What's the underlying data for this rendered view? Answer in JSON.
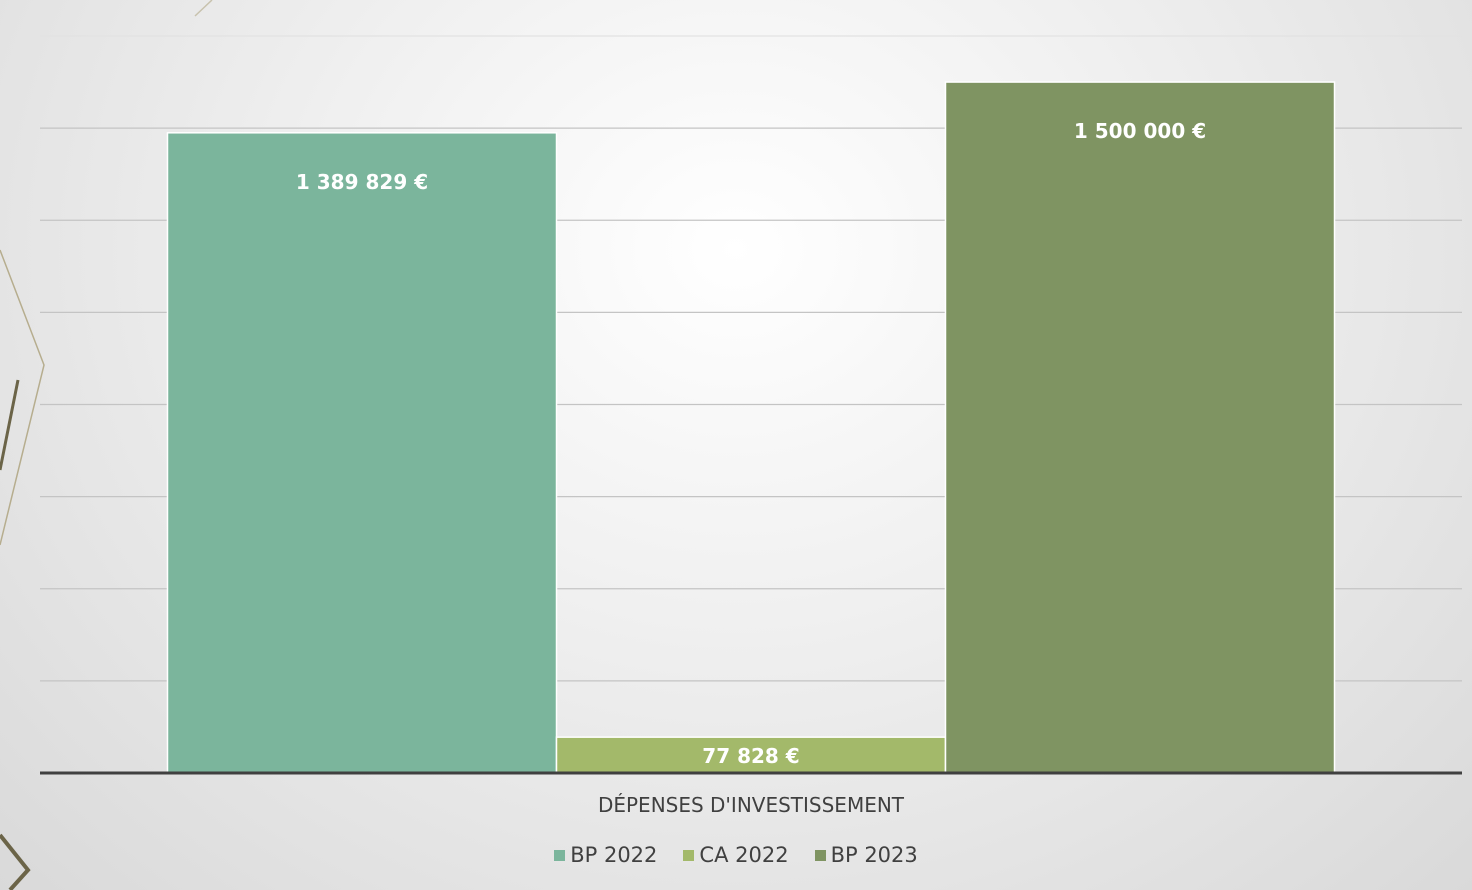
{
  "chart_data": {
    "type": "bar",
    "categories": [
      "DÉPENSES D'INVESTISSEMENT"
    ],
    "series": [
      {
        "name": "BP 2022",
        "values": [
          1389829
        ],
        "label": "1 389 829 €",
        "color": "#7bb59c"
      },
      {
        "name": "CA 2022",
        "values": [
          77828
        ],
        "label": "77 828 €",
        "color": "#a3b96a"
      },
      {
        "name": "BP 2023",
        "values": [
          1500000
        ],
        "label": "1 500 000 €",
        "color": "#7f9462"
      }
    ],
    "ylim": [
      0,
      1600000
    ],
    "grid": true,
    "legend_position": "bottom",
    "title": "",
    "xlabel": "",
    "ylabel": ""
  }
}
